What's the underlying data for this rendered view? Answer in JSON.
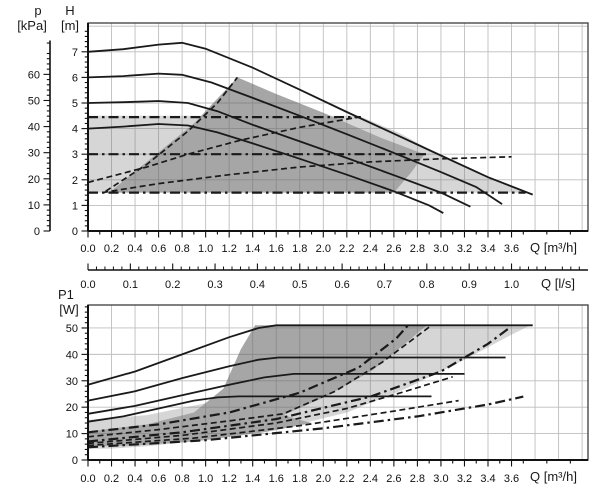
{
  "figure": {
    "background": "#ffffff"
  },
  "labels": {
    "p": "p",
    "p_unit": "[kPa]",
    "h": "H",
    "h_unit": "[m]",
    "p1": "P1",
    "p1_unit": "[W]",
    "q_top": "Q [m³/h]",
    "q_ls": "Q [l/s]",
    "q_bottom": "Q [m³/h]"
  },
  "colors": {
    "curve": "#1a1a1a",
    "frame": "#3c3c3c",
    "grid": "#666666",
    "region_light": "#d6d6d6",
    "region_dark": "#a6a6a6"
  },
  "chart_data": [
    {
      "id": "head-chart",
      "name": "head-vs-flow-chart",
      "type": "line",
      "xlabel": "Q [m³/h]",
      "ylabel": "H [m]",
      "y2label": "p [kPa]",
      "x2label": "Q [l/s]",
      "xlim": [
        0,
        4.25
      ],
      "ylim": [
        0,
        8.125
      ],
      "grid": {
        "x_step": 0.2,
        "y_step": 1
      },
      "x_tick_labels": [
        "0.0",
        "0.2",
        "0.4",
        "0.6",
        "0.8",
        "1.0",
        "1.2",
        "1.4",
        "1.6",
        "1.8",
        "2.0",
        "2.2",
        "2.4",
        "2.6",
        "2.8",
        "3.0",
        "3.2",
        "3.4",
        "3.6"
      ],
      "y_tick_labels": [
        "0",
        "1",
        "2",
        "3",
        "4",
        "5",
        "6",
        "7"
      ],
      "kpa_tick_labels": [
        "0",
        "10",
        "20",
        "30",
        "40",
        "50",
        "60"
      ],
      "ls_tick_labels": [
        "0.0",
        "0.1",
        "0.2",
        "0.3",
        "0.4",
        "0.5",
        "0.6",
        "0.7",
        "0.8",
        "0.9",
        "1.0"
      ],
      "regions": [
        {
          "name": "operating-range-light",
          "fill": "#d6d6d6",
          "points": [
            [
              0,
              1.5
            ],
            [
              0,
              4.5
            ],
            [
              2.3,
              4.5
            ],
            [
              2.65,
              3.82
            ],
            [
              3.0,
              2.95
            ],
            [
              3.4,
              2.1
            ],
            [
              3.73,
              1.5
            ]
          ]
        },
        {
          "name": "operating-range-dark",
          "fill": "#a6a6a6",
          "points": [
            [
              0.18,
              1.5
            ],
            [
              0.5,
              2.7
            ],
            [
              0.9,
              4.2
            ],
            [
              1.27,
              6.0
            ],
            [
              1.6,
              5.35
            ],
            [
              2.0,
              4.62
            ],
            [
              2.5,
              3.62
            ],
            [
              2.86,
              3.0
            ],
            [
              2.74,
              2.25
            ],
            [
              2.6,
              1.5
            ]
          ]
        }
      ],
      "series": [
        {
          "name": "speed-curve-1",
          "style": "solid",
          "points": [
            [
              0,
              7.0
            ],
            [
              0.3,
              7.1
            ],
            [
              0.6,
              7.28
            ],
            [
              0.8,
              7.35
            ],
            [
              1.0,
              7.12
            ],
            [
              1.4,
              6.38
            ],
            [
              1.8,
              5.52
            ],
            [
              2.2,
              4.65
            ],
            [
              2.6,
              3.8
            ],
            [
              3.0,
              2.95
            ],
            [
              3.4,
              2.1
            ],
            [
              3.78,
              1.42
            ]
          ]
        },
        {
          "name": "speed-curve-2",
          "style": "solid",
          "points": [
            [
              0,
              6.0
            ],
            [
              0.3,
              6.05
            ],
            [
              0.6,
              6.15
            ],
            [
              0.8,
              6.1
            ],
            [
              1.05,
              5.8
            ],
            [
              1.4,
              5.2
            ],
            [
              1.8,
              4.5
            ],
            [
              2.2,
              3.78
            ],
            [
              2.6,
              3.05
            ],
            [
              3.0,
              2.3
            ],
            [
              3.3,
              1.72
            ],
            [
              3.52,
              1.05
            ]
          ]
        },
        {
          "name": "speed-curve-3",
          "style": "solid",
          "points": [
            [
              0,
              5.0
            ],
            [
              0.3,
              5.03
            ],
            [
              0.6,
              5.08
            ],
            [
              0.85,
              5.0
            ],
            [
              1.1,
              4.68
            ],
            [
              1.4,
              4.15
            ],
            [
              1.8,
              3.5
            ],
            [
              2.2,
              2.85
            ],
            [
              2.6,
              2.18
            ],
            [
              3.0,
              1.5
            ],
            [
              3.25,
              0.95
            ]
          ]
        },
        {
          "name": "speed-curve-4",
          "style": "solid",
          "points": [
            [
              0,
              4.0
            ],
            [
              0.3,
              4.08
            ],
            [
              0.6,
              4.18
            ],
            [
              0.85,
              4.12
            ],
            [
              1.1,
              3.85
            ],
            [
              1.4,
              3.42
            ],
            [
              1.8,
              2.82
            ],
            [
              2.2,
              2.2
            ],
            [
              2.6,
              1.55
            ],
            [
              2.9,
              1.0
            ],
            [
              3.02,
              0.7
            ]
          ]
        },
        {
          "name": "constant-pressure-high",
          "style": "dashdot",
          "points": [
            [
              0,
              4.45
            ],
            [
              2.32,
              4.45
            ]
          ]
        },
        {
          "name": "constant-pressure-mid",
          "style": "dashdot",
          "points": [
            [
              0,
              3.0
            ],
            [
              2.9,
              3.0
            ]
          ]
        },
        {
          "name": "constant-pressure-low",
          "style": "dashdot",
          "points": [
            [
              0,
              1.5
            ],
            [
              3.72,
              1.5
            ]
          ]
        },
        {
          "name": "proportional-pressure-low",
          "style": "dashed",
          "points": [
            [
              0.12,
              1.5
            ],
            [
              0.6,
              1.85
            ],
            [
              1.2,
              2.2
            ],
            [
              1.8,
              2.5
            ],
            [
              2.4,
              2.7
            ],
            [
              3.0,
              2.82
            ],
            [
              3.6,
              2.9
            ]
          ]
        },
        {
          "name": "proportional-pressure-mid",
          "style": "dashed",
          "points": [
            [
              0,
              1.9
            ],
            [
              0.5,
              2.5
            ],
            [
              0.85,
              3.0
            ],
            [
              1.3,
              3.55
            ],
            [
              1.8,
              4.05
            ],
            [
              2.3,
              4.45
            ]
          ]
        },
        {
          "name": "proportional-pressure-steep",
          "style": "dashed",
          "points": [
            [
              0.15,
              1.55
            ],
            [
              0.5,
              2.6
            ],
            [
              0.85,
              3.9
            ],
            [
              1.1,
              5.0
            ],
            [
              1.27,
              6.0
            ]
          ]
        }
      ]
    },
    {
      "id": "power-chart",
      "name": "power-vs-flow-chart",
      "type": "line",
      "xlabel": "Q [m³/h]",
      "ylabel": "P1 [W]",
      "xlim": [
        0,
        4.25
      ],
      "ylim": [
        0,
        58.7
      ],
      "grid": {
        "x_step": 0.2,
        "y_step": 10
      },
      "x_tick_labels": [
        "0.0",
        "0.2",
        "0.4",
        "0.6",
        "0.8",
        "1.0",
        "1.2",
        "1.4",
        "1.6",
        "1.8",
        "2.0",
        "2.2",
        "2.4",
        "2.6",
        "2.8",
        "3.0",
        "3.2",
        "3.4",
        "3.6"
      ],
      "y_tick_labels": [
        "0",
        "10",
        "20",
        "30",
        "40",
        "50"
      ],
      "regions": [
        {
          "name": "power-range-light",
          "fill": "#d6d6d6",
          "points": [
            [
              0,
              4.2
            ],
            [
              0,
              15.2
            ],
            [
              0.5,
              17
            ],
            [
              1.0,
              21.5
            ],
            [
              1.4,
              28
            ],
            [
              1.55,
              38
            ],
            [
              1.65,
              47
            ],
            [
              1.75,
              51
            ],
            [
              3.76,
              51
            ],
            [
              3.58,
              47
            ],
            [
              3.2,
              38
            ],
            [
              2.7,
              27
            ],
            [
              2.2,
              18
            ],
            [
              1.7,
              12.5
            ],
            [
              1.1,
              8
            ],
            [
              0.5,
              5.2
            ],
            [
              0.2,
              4.3
            ]
          ]
        },
        {
          "name": "power-range-dark",
          "fill": "#a6a6a6",
          "points": [
            [
              0,
              5.1
            ],
            [
              0,
              10.8
            ],
            [
              0.5,
              13.5
            ],
            [
              0.9,
              18
            ],
            [
              1.15,
              27
            ],
            [
              1.3,
              42
            ],
            [
              1.42,
              51
            ],
            [
              2.88,
              51
            ],
            [
              2.72,
              45
            ],
            [
              2.42,
              34
            ],
            [
              2.02,
              24
            ],
            [
              1.66,
              17
            ],
            [
              1.9,
              14
            ],
            [
              1.5,
              10.5
            ],
            [
              0.9,
              7
            ],
            [
              0.4,
              5.5
            ]
          ]
        }
      ],
      "series": [
        {
          "name": "power-curve-1",
          "style": "solid",
          "points": [
            [
              0,
              28.5
            ],
            [
              0.4,
              33.5
            ],
            [
              0.8,
              40
            ],
            [
              1.2,
              46.5
            ],
            [
              1.45,
              50
            ],
            [
              1.6,
              51
            ],
            [
              3.78,
              51
            ]
          ]
        },
        {
          "name": "power-curve-2",
          "style": "solid",
          "points": [
            [
              0,
              22.5
            ],
            [
              0.4,
              26
            ],
            [
              0.8,
              31
            ],
            [
              1.2,
              35.5
            ],
            [
              1.45,
              38
            ],
            [
              1.62,
              38.8
            ],
            [
              3.55,
              38.8
            ]
          ]
        },
        {
          "name": "power-curve-3",
          "style": "solid",
          "points": [
            [
              0,
              17.5
            ],
            [
              0.4,
              20.5
            ],
            [
              0.8,
              24.5
            ],
            [
              1.2,
              28.5
            ],
            [
              1.5,
              31.3
            ],
            [
              1.75,
              32.6
            ],
            [
              3.2,
              32.6
            ]
          ]
        },
        {
          "name": "power-curve-4",
          "style": "solid",
          "points": [
            [
              0,
              14.5
            ],
            [
              0.3,
              16.5
            ],
            [
              0.6,
              19.5
            ],
            [
              0.9,
              22.5
            ],
            [
              1.1,
              23.7
            ],
            [
              1.28,
              24.1
            ],
            [
              2.92,
              24.1
            ]
          ]
        },
        {
          "name": "power-dashdot-1",
          "style": "dashdot",
          "points": [
            [
              0,
              10.5
            ],
            [
              0.6,
              13.5
            ],
            [
              1.2,
              18
            ],
            [
              1.8,
              25.5
            ],
            [
              2.3,
              35
            ],
            [
              2.62,
              46
            ],
            [
              2.72,
              51
            ]
          ]
        },
        {
          "name": "power-dashdot-2",
          "style": "dashdot",
          "points": [
            [
              0,
              7
            ],
            [
              0.8,
              10.5
            ],
            [
              1.6,
              15.5
            ],
            [
              2.4,
              24
            ],
            [
              3.0,
              33.5
            ],
            [
              3.4,
              44
            ],
            [
              3.58,
              50
            ]
          ]
        },
        {
          "name": "power-dashdot-3",
          "style": "dashdot",
          "points": [
            [
              0,
              4.8
            ],
            [
              1.0,
              7.5
            ],
            [
              2.0,
              12
            ],
            [
              2.8,
              16.5
            ],
            [
              3.4,
              21
            ],
            [
              3.7,
              24
            ]
          ]
        },
        {
          "name": "power-dashed-1",
          "style": "dashed",
          "points": [
            [
              0,
              8.8
            ],
            [
              0.6,
              11.5
            ],
            [
              1.2,
              14.8
            ],
            [
              1.66,
              17.5
            ],
            [
              2.1,
              26
            ],
            [
              2.5,
              37
            ],
            [
              2.8,
              47
            ],
            [
              2.92,
              51
            ]
          ]
        },
        {
          "name": "power-dashed-2",
          "style": "dashed",
          "points": [
            [
              0,
              6.3
            ],
            [
              0.8,
              9.3
            ],
            [
              1.6,
              14
            ],
            [
              2.2,
              19.5
            ],
            [
              2.7,
              26
            ],
            [
              3.1,
              31.5
            ]
          ]
        },
        {
          "name": "power-dashed-3",
          "style": "dashed",
          "points": [
            [
              0,
              5.5
            ],
            [
              0.9,
              8.3
            ],
            [
              1.8,
              13
            ],
            [
              2.6,
              18.5
            ],
            [
              3.15,
              22.5
            ]
          ]
        }
      ]
    }
  ]
}
